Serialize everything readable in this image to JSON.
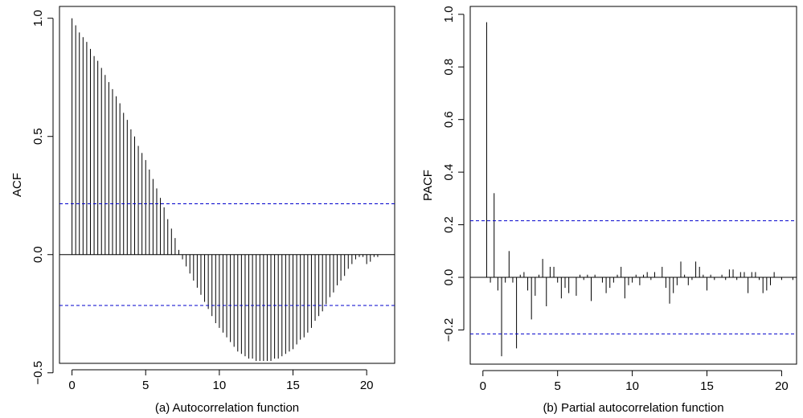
{
  "chart_data": [
    {
      "type": "bar",
      "subtype": "acf-correlogram",
      "caption": "(a) Autocorrelation function",
      "ylabel": "ACF",
      "xlabel": "",
      "xlim": [
        0,
        21
      ],
      "ylim": [
        -0.5,
        1.0
      ],
      "xticks": [
        0,
        5,
        10,
        15,
        20
      ],
      "yticks": [
        -0.5,
        0.0,
        0.5,
        1.0
      ],
      "ytick_labels": [
        "−0.5",
        "0.0",
        "0.5",
        "1.0"
      ],
      "xtick_labels": [
        "0",
        "5",
        "10",
        "15",
        "20"
      ],
      "lag_step": 0.25,
      "ci": 0.215,
      "ci_color": "#0000cc",
      "grid": false,
      "lags": [
        0,
        0.25,
        0.5,
        0.75,
        1,
        1.25,
        1.5,
        1.75,
        2,
        2.25,
        2.5,
        2.75,
        3,
        3.25,
        3.5,
        3.75,
        4,
        4.25,
        4.5,
        4.75,
        5,
        5.25,
        5.5,
        5.75,
        6,
        6.25,
        6.5,
        6.75,
        7,
        7.25,
        7.5,
        7.75,
        8,
        8.25,
        8.5,
        8.75,
        9,
        9.25,
        9.5,
        9.75,
        10,
        10.25,
        10.5,
        10.75,
        11,
        11.25,
        11.5,
        11.75,
        12,
        12.25,
        12.5,
        12.75,
        13,
        13.25,
        13.5,
        13.75,
        14,
        14.25,
        14.5,
        14.75,
        15,
        15.25,
        15.5,
        15.75,
        16,
        16.25,
        16.5,
        16.75,
        17,
        17.25,
        17.5,
        17.75,
        18,
        18.25,
        18.5,
        18.75,
        19,
        19.25,
        19.5,
        19.75,
        20,
        20.25,
        20.5,
        20.75
      ],
      "values": [
        1.0,
        0.97,
        0.94,
        0.92,
        0.9,
        0.87,
        0.84,
        0.82,
        0.79,
        0.76,
        0.73,
        0.7,
        0.67,
        0.64,
        0.6,
        0.57,
        0.53,
        0.5,
        0.46,
        0.43,
        0.4,
        0.36,
        0.32,
        0.28,
        0.24,
        0.2,
        0.15,
        0.11,
        0.07,
        0.02,
        -0.02,
        -0.05,
        -0.08,
        -0.11,
        -0.14,
        -0.17,
        -0.2,
        -0.23,
        -0.26,
        -0.29,
        -0.31,
        -0.33,
        -0.35,
        -0.37,
        -0.39,
        -0.41,
        -0.42,
        -0.43,
        -0.44,
        -0.44,
        -0.45,
        -0.45,
        -0.45,
        -0.45,
        -0.45,
        -0.44,
        -0.44,
        -0.43,
        -0.42,
        -0.41,
        -0.4,
        -0.38,
        -0.36,
        -0.35,
        -0.33,
        -0.31,
        -0.28,
        -0.26,
        -0.24,
        -0.21,
        -0.18,
        -0.16,
        -0.13,
        -0.11,
        -0.09,
        -0.06,
        -0.04,
        -0.02,
        -0.01,
        -0.01,
        -0.04,
        -0.03,
        -0.01,
        -0.01
      ]
    },
    {
      "type": "bar",
      "subtype": "pacf-correlogram",
      "caption": "(b) Partial autocorrelation function",
      "ylabel": "PACF",
      "xlabel": "",
      "xlim": [
        0,
        21
      ],
      "ylim": [
        -0.3,
        1.0
      ],
      "xticks": [
        0,
        5,
        10,
        15,
        20
      ],
      "yticks": [
        -0.2,
        0.0,
        0.2,
        0.4,
        0.6,
        0.8,
        1.0
      ],
      "ytick_labels": [
        "−0.2",
        "0.0",
        "0.2",
        "0.4",
        "0.6",
        "0.8",
        "1.0"
      ],
      "xtick_labels": [
        "0",
        "5",
        "10",
        "15",
        "20"
      ],
      "lag_step": 0.25,
      "ci": 0.215,
      "ci_color": "#0000cc",
      "grid": false,
      "lags": [
        0.25,
        0.5,
        0.75,
        1,
        1.25,
        1.5,
        1.75,
        2,
        2.25,
        2.5,
        2.75,
        3,
        3.25,
        3.5,
        3.75,
        4,
        4.25,
        4.5,
        4.75,
        5,
        5.25,
        5.5,
        5.75,
        6,
        6.25,
        6.5,
        6.75,
        7,
        7.25,
        7.5,
        7.75,
        8,
        8.25,
        8.5,
        8.75,
        9,
        9.25,
        9.5,
        9.75,
        10,
        10.25,
        10.5,
        10.75,
        11,
        11.25,
        11.5,
        11.75,
        12,
        12.25,
        12.5,
        12.75,
        13,
        13.25,
        13.5,
        13.75,
        14,
        14.25,
        14.5,
        14.75,
        15,
        15.25,
        15.5,
        15.75,
        16,
        16.25,
        16.5,
        16.75,
        17,
        17.25,
        17.5,
        17.75,
        18,
        18.25,
        18.5,
        18.75,
        19,
        19.25,
        19.5,
        19.75,
        20,
        20.25,
        20.5,
        20.75
      ],
      "values": [
        0.97,
        -0.02,
        0.32,
        -0.05,
        -0.3,
        -0.02,
        0.1,
        -0.02,
        -0.27,
        0.01,
        0.02,
        -0.05,
        -0.16,
        -0.07,
        0.01,
        0.07,
        -0.11,
        0.04,
        0.04,
        -0.02,
        -0.08,
        -0.04,
        -0.06,
        0.0,
        -0.07,
        0.01,
        -0.01,
        0.01,
        -0.09,
        0.01,
        0.0,
        -0.02,
        -0.06,
        -0.04,
        -0.02,
        0.01,
        0.04,
        -0.08,
        -0.03,
        -0.02,
        0.01,
        -0.03,
        0.01,
        0.02,
        -0.01,
        0.02,
        0.0,
        0.04,
        -0.04,
        -0.1,
        -0.06,
        -0.03,
        0.06,
        0.01,
        -0.03,
        -0.01,
        0.06,
        0.04,
        0.01,
        -0.05,
        0.01,
        -0.01,
        0.0,
        0.01,
        -0.01,
        0.03,
        0.03,
        -0.01,
        0.02,
        0.02,
        -0.06,
        0.02,
        0.02,
        -0.01,
        -0.06,
        -0.05,
        -0.03,
        0.02,
        0.0,
        -0.01,
        0.0,
        0.0,
        -0.01
      ]
    }
  ]
}
